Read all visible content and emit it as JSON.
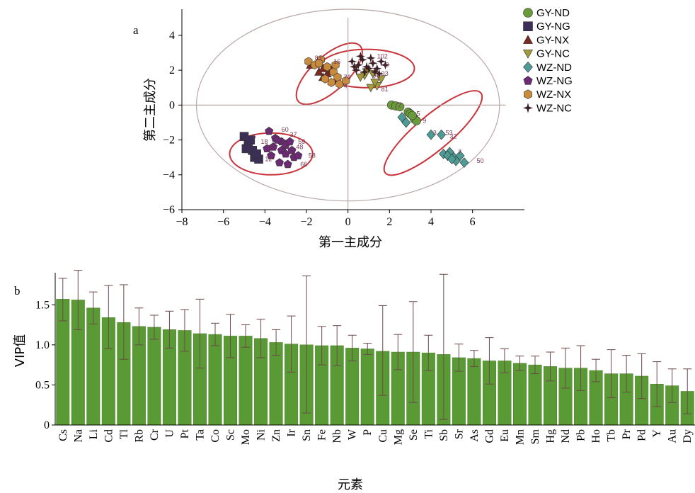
{
  "chart_data": [
    {
      "type": "scatter",
      "panel_label": "a",
      "xlabel": "第一主成分",
      "ylabel": "第二主成分",
      "xlim": [
        -8,
        8.5
      ],
      "ylim": [
        -6,
        5.5
      ],
      "xticks": [
        -8,
        -6,
        -4,
        -2,
        0,
        2,
        4,
        6
      ],
      "yticks": [
        -6,
        -4,
        -2,
        0,
        2,
        4
      ],
      "legend_position": "right",
      "series": [
        {
          "name": "GY-ND",
          "marker": "circle",
          "color": "#6a9a3a",
          "points": [
            [
              2.1,
              0.0
            ],
            [
              2.3,
              -0.05
            ],
            [
              2.9,
              -0.4
            ],
            [
              3.0,
              -0.5
            ],
            [
              3.2,
              -0.8
            ],
            [
              3.3,
              -0.9
            ],
            [
              2.5,
              -0.1
            ],
            [
              3.1,
              -0.6
            ]
          ]
        },
        {
          "name": "GY-NG",
          "marker": "square",
          "color": "#3c2f57",
          "points": [
            [
              -5.0,
              -1.8
            ],
            [
              -4.8,
              -2.2
            ],
            [
              -4.6,
              -2.6
            ],
            [
              -4.5,
              -3.0
            ],
            [
              -4.3,
              -3.1
            ],
            [
              -4.7,
              -2.0
            ],
            [
              -4.4,
              -2.8
            ],
            [
              -4.9,
              -2.5
            ]
          ]
        },
        {
          "name": "GY-NX",
          "marker": "triangle",
          "color": "#7a2a1e",
          "points": [
            [
              -1.8,
              2.3
            ],
            [
              -1.5,
              2.4
            ],
            [
              -1.2,
              2.1
            ],
            [
              -1.0,
              1.8
            ],
            [
              -1.2,
              1.6
            ],
            [
              -0.8,
              2.0
            ],
            [
              -1.4,
              1.9
            ],
            [
              -0.5,
              1.5
            ]
          ]
        },
        {
          "name": "GY-NC",
          "marker": "triangle-down",
          "color": "#a39a3a",
          "points": [
            [
              1.1,
              1.0
            ],
            [
              1.4,
              1.1
            ],
            [
              0.8,
              1.7
            ],
            [
              1.2,
              1.8
            ],
            [
              0.6,
              1.6
            ],
            [
              1.6,
              1.5
            ],
            [
              0.9,
              1.9
            ],
            [
              1.3,
              1.3
            ]
          ]
        },
        {
          "name": "WZ-ND",
          "marker": "diamond",
          "color": "#4d9b94",
          "points": [
            [
              2.6,
              -0.7
            ],
            [
              2.8,
              -1.0
            ],
            [
              4.0,
              -1.7
            ],
            [
              4.5,
              -1.7
            ],
            [
              4.6,
              -2.8
            ],
            [
              4.9,
              -2.7
            ],
            [
              5.1,
              -3.0
            ],
            [
              5.2,
              -3.2
            ],
            [
              5.6,
              -3.3
            ],
            [
              5.4,
              -2.9
            ],
            [
              4.8,
              -2.9
            ],
            [
              5.0,
              -3.1
            ]
          ]
        },
        {
          "name": "WZ-NG",
          "marker": "pentagon",
          "color": "#6b2a72",
          "points": [
            [
              -3.8,
              -1.5
            ],
            [
              -3.5,
              -1.9
            ],
            [
              -3.2,
              -2.1
            ],
            [
              -3.0,
              -2.3
            ],
            [
              -3.2,
              -2.6
            ],
            [
              -3.6,
              -2.4
            ],
            [
              -3.9,
              -2.5
            ],
            [
              -3.3,
              -3.3
            ],
            [
              -2.9,
              -3.4
            ],
            [
              -2.6,
              -3.0
            ],
            [
              -2.8,
              -2.1
            ],
            [
              -3.0,
              -2.8
            ],
            [
              -3.7,
              -2.9
            ],
            [
              -2.4,
              -2.9
            ],
            [
              -3.4,
              -2.0
            ],
            [
              -2.7,
              -2.6
            ]
          ]
        },
        {
          "name": "WZ-NX",
          "marker": "hexagon",
          "color": "#c88a3c",
          "points": [
            [
              -1.9,
              2.5
            ],
            [
              -1.6,
              2.3
            ],
            [
              -1.3,
              2.6
            ],
            [
              -1.0,
              2.2
            ],
            [
              -0.7,
              1.9
            ],
            [
              -0.5,
              1.6
            ],
            [
              -0.8,
              1.3
            ],
            [
              -0.4,
              1.2
            ],
            [
              -0.1,
              1.4
            ],
            [
              -0.6,
              2.3
            ],
            [
              -1.1,
              1.5
            ],
            [
              -1.4,
              2.4
            ]
          ]
        },
        {
          "name": "WZ-NC",
          "marker": "star",
          "color": "#3b1e26",
          "points": [
            [
              0.2,
              2.5
            ],
            [
              0.5,
              2.3
            ],
            [
              0.7,
              2.6
            ],
            [
              0.9,
              2.2
            ],
            [
              1.2,
              2.4
            ],
            [
              1.4,
              2.1
            ],
            [
              1.6,
              2.5
            ],
            [
              1.8,
              2.3
            ],
            [
              0.4,
              2.0
            ],
            [
              0.8,
              1.9
            ],
            [
              1.1,
              2.7
            ],
            [
              1.5,
              1.8
            ],
            [
              0.3,
              2.2
            ],
            [
              1.0,
              2.1
            ],
            [
              1.3,
              1.9
            ],
            [
              0.6,
              2.8
            ]
          ]
        }
      ],
      "annotations": [
        {
          "text": "2",
          "x": 2.4,
          "y": 0.0
        },
        {
          "text": "5",
          "x": 3.3,
          "y": -0.5
        },
        {
          "text": "9",
          "x": 3.6,
          "y": -0.9
        },
        {
          "text": "3",
          "x": 4.1,
          "y": -1.6
        },
        {
          "text": "53",
          "x": 4.7,
          "y": -1.6
        },
        {
          "text": "32",
          "x": 4.9,
          "y": -1.8
        },
        {
          "text": "7",
          "x": 5.3,
          "y": -2.7
        },
        {
          "text": "50",
          "x": 6.2,
          "y": -3.2
        },
        {
          "text": "102",
          "x": 1.4,
          "y": 2.8
        },
        {
          "text": "0",
          "x": 1.8,
          "y": 2.3
        },
        {
          "text": "03",
          "x": 1.6,
          "y": 1.8
        },
        {
          "text": "81",
          "x": 1.6,
          "y": 0.9
        },
        {
          "text": "29",
          "x": 1.2,
          "y": 1.6
        },
        {
          "text": "83",
          "x": -1.6,
          "y": 2.7
        },
        {
          "text": "16",
          "x": -0.7,
          "y": 2.5
        },
        {
          "text": "76",
          "x": -0.2,
          "y": 1.6
        },
        {
          "text": "4",
          "x": -0.2,
          "y": 1.1
        },
        {
          "text": "60",
          "x": -3.2,
          "y": -1.4
        },
        {
          "text": "37",
          "x": -2.8,
          "y": -1.7
        },
        {
          "text": "59",
          "x": -2.4,
          "y": -2.1
        },
        {
          "text": "48",
          "x": -2.5,
          "y": -2.4
        },
        {
          "text": "58",
          "x": -1.9,
          "y": -2.9
        },
        {
          "text": "66",
          "x": -2.3,
          "y": -3.4
        },
        {
          "text": "12",
          "x": -4.0,
          "y": -3.1
        },
        {
          "text": "18",
          "x": -4.2,
          "y": -2.1
        },
        {
          "text": "6",
          "x": -4.6,
          "y": -1.8
        },
        {
          "text": "7",
          "x": -3.8,
          "y": -2.4
        }
      ],
      "reference_ellipse": {
        "cx": 0.0,
        "cy": 0.0,
        "rx": 7.3,
        "ry": 5.5
      },
      "cluster_ellipses": [
        {
          "cx": -3.7,
          "cy": -2.8,
          "rx": 2.0,
          "ry": 1.2,
          "angle": 0
        },
        {
          "cx": -0.9,
          "cy": 1.8,
          "rx": 2.0,
          "ry": 1.0,
          "angle": -42
        },
        {
          "cx": 0.9,
          "cy": 2.1,
          "rx": 2.3,
          "ry": 1.1,
          "angle": 0
        },
        {
          "cx": 4.1,
          "cy": -1.6,
          "rx": 3.0,
          "ry": 1.0,
          "angle": -40
        }
      ]
    },
    {
      "type": "bar",
      "panel_label": "b",
      "xlabel": "元素",
      "ylabel": "VIP值",
      "ylim": [
        0,
        1.9
      ],
      "yticks": [
        0,
        0.5,
        1.0,
        1.5
      ],
      "ytick_labels": [
        "0",
        "0.5",
        "1.0",
        "1.5"
      ],
      "bar_color": "#5a9a34",
      "categories": [
        "Cs",
        "Na",
        "Li",
        "Cd",
        "Tl",
        "Rb",
        "Cr",
        "U",
        "Pt",
        "Ta",
        "Co",
        "Sc",
        "Mo",
        "Ni",
        "Zn",
        "Ir",
        "Sn",
        "Fe",
        "Nb",
        "W",
        "P",
        "Cu",
        "Mg",
        "Se",
        "Ti",
        "Sb",
        "Sr",
        "As",
        "Gd",
        "Eu",
        "Mn",
        "Sm",
        "Hg",
        "Nd",
        "Pb",
        "Ho",
        "Tb",
        "Pr",
        "Pd",
        "Y",
        "Au",
        "Dy"
      ],
      "values": [
        1.57,
        1.56,
        1.46,
        1.34,
        1.28,
        1.23,
        1.22,
        1.19,
        1.18,
        1.14,
        1.13,
        1.11,
        1.11,
        1.08,
        1.03,
        1.01,
        1.0,
        0.99,
        0.99,
        0.96,
        0.95,
        0.92,
        0.91,
        0.91,
        0.9,
        0.88,
        0.84,
        0.83,
        0.8,
        0.8,
        0.77,
        0.75,
        0.73,
        0.71,
        0.71,
        0.68,
        0.64,
        0.64,
        0.61,
        0.51,
        0.49,
        0.42
      ],
      "error_upper": [
        1.83,
        1.93,
        1.66,
        1.74,
        1.75,
        1.46,
        1.37,
        1.42,
        1.44,
        1.57,
        1.27,
        1.38,
        1.25,
        1.32,
        1.19,
        1.36,
        1.86,
        1.23,
        1.24,
        1.12,
        1.02,
        1.49,
        1.13,
        1.54,
        1.12,
        1.88,
        1.01,
        0.93,
        1.09,
        0.95,
        0.86,
        0.86,
        0.91,
        0.96,
        0.99,
        0.82,
        0.94,
        0.87,
        0.89,
        0.79,
        0.7,
        0.7
      ],
      "error_lower": [
        1.3,
        1.19,
        1.26,
        0.95,
        0.82,
        1.0,
        1.07,
        0.96,
        0.92,
        0.71,
        0.99,
        0.84,
        0.97,
        0.84,
        0.87,
        0.66,
        0.15,
        0.75,
        0.74,
        0.8,
        0.88,
        0.37,
        0.69,
        0.28,
        0.68,
        0.07,
        0.67,
        0.73,
        0.51,
        0.65,
        0.68,
        0.64,
        0.55,
        0.46,
        0.43,
        0.54,
        0.34,
        0.41,
        0.33,
        0.23,
        0.28,
        0.14
      ]
    }
  ]
}
